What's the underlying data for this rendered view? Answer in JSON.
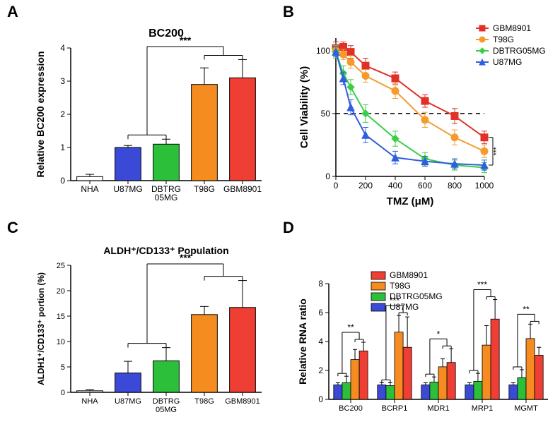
{
  "panelLabels": {
    "A": "A",
    "B": "B",
    "C": "C",
    "D": "D"
  },
  "panelLabelFontSize": 22,
  "A": {
    "type": "bar",
    "title": "BC200",
    "title_fontsize": 16,
    "ylabel": "Relative BC200 expression",
    "ylabel_fontsize": 14,
    "categories": [
      "NHA",
      "U87MG",
      "DBTRG\n05MG",
      "T98G",
      "GBM8901"
    ],
    "values": [
      0.12,
      1.0,
      1.1,
      2.9,
      3.1
    ],
    "errors": [
      0.07,
      0.06,
      0.15,
      0.5,
      0.55
    ],
    "bar_colors": [
      "#ffffff",
      "#3a49d6",
      "#2bbf3a",
      "#f58c20",
      "#ef3e33"
    ],
    "ylim": [
      0,
      4
    ],
    "ytick_step": 1,
    "axis_fontsize": 12,
    "bar_border": "#000000",
    "bar_border_width": 1,
    "sig_label": "***",
    "plot_bg": "#ffffff"
  },
  "B": {
    "type": "line",
    "title": "",
    "ylabel": "Cell Viability (%)",
    "xlabel": "TMZ (μM)",
    "label_fontsize": 15,
    "axis_fontsize": 12,
    "series": [
      {
        "name": "GBM8901",
        "color": "#e03127",
        "marker": "square",
        "x": [
          0,
          50,
          100,
          200,
          400,
          600,
          800,
          1000
        ],
        "y": [
          102,
          103,
          99,
          88,
          78,
          60,
          48,
          31
        ],
        "err": [
          5,
          4,
          5,
          6,
          5,
          5,
          6,
          5
        ]
      },
      {
        "name": "T98G",
        "color": "#f59b2e",
        "marker": "circle",
        "x": [
          0,
          50,
          100,
          200,
          400,
          600,
          800,
          1000
        ],
        "y": [
          100,
          97,
          91,
          80,
          68,
          45,
          31,
          20
        ],
        "err": [
          4,
          4,
          5,
          5,
          6,
          6,
          6,
          5
        ]
      },
      {
        "name": "DBTRG05MG",
        "color": "#3bcf46",
        "marker": "diamond",
        "x": [
          0,
          50,
          100,
          200,
          400,
          600,
          800,
          1000
        ],
        "y": [
          99,
          82,
          71,
          50,
          30,
          14,
          9,
          7
        ],
        "err": [
          5,
          6,
          6,
          7,
          6,
          5,
          4,
          4
        ]
      },
      {
        "name": "U87MG",
        "color": "#2f5fe0",
        "marker": "triangle",
        "x": [
          0,
          50,
          100,
          200,
          400,
          600,
          800,
          1000
        ],
        "y": [
          99,
          78,
          55,
          33,
          15,
          12,
          10,
          9
        ],
        "err": [
          4,
          5,
          6,
          6,
          5,
          4,
          4,
          4
        ]
      }
    ],
    "xlim": [
      0,
      1000
    ],
    "xticks": [
      0,
      200,
      400,
      600,
      800,
      1000
    ],
    "ylim": [
      0,
      110
    ],
    "yticks": [
      0,
      50,
      100
    ],
    "href": 50,
    "marker_size": 5,
    "line_width": 2,
    "sig_brace_label": "***"
  },
  "C": {
    "type": "bar",
    "title": "ALDH⁺/CD133⁺ Population",
    "title_fontsize": 14,
    "ylabel": "ALDH1⁺/CD133⁺ portion (%)",
    "ylabel_fontsize": 12,
    "categories": [
      "NHA",
      "U87MG",
      "DBTRG\n05MG",
      "T98G",
      "GBM8901"
    ],
    "values": [
      0.3,
      3.8,
      6.2,
      15.3,
      16.7
    ],
    "errors": [
      0.2,
      2.3,
      2.6,
      1.6,
      5.3
    ],
    "bar_colors": [
      "#ffffff",
      "#3a49d6",
      "#2bbf3a",
      "#f58c20",
      "#ef3e33"
    ],
    "ylim": [
      0,
      25
    ],
    "ytick_step": 5,
    "axis_fontsize": 11,
    "bar_border": "#000000",
    "bar_border_width": 1,
    "sig_label": "***"
  },
  "D": {
    "type": "grouped_bar",
    "title": "",
    "ylabel": "Relative RNA ratio",
    "ylabel_fontsize": 14,
    "axis_fontsize": 12,
    "categories": [
      "BC200",
      "BCRP1",
      "MDR1",
      "MRP1",
      "MGMT"
    ],
    "series": [
      {
        "name": "GBM8901",
        "color": "#ef3e33",
        "values": [
          3.35,
          3.6,
          2.55,
          5.55,
          3.05
        ],
        "errors": [
          0.6,
          2.1,
          0.95,
          1.35,
          0.55
        ]
      },
      {
        "name": "T98G",
        "color": "#f58c20",
        "values": [
          2.75,
          4.65,
          2.25,
          3.75,
          4.2
        ],
        "errors": [
          0.7,
          1.15,
          0.55,
          1.35,
          1.0
        ]
      },
      {
        "name": "DBTRG05MG",
        "color": "#2bbf3a",
        "values": [
          1.15,
          0.95,
          1.2,
          1.25,
          1.5
        ],
        "errors": [
          0.45,
          0.2,
          0.35,
          0.55,
          0.55
        ]
      },
      {
        "name": "U87MG",
        "color": "#3a49d6",
        "values": [
          1.0,
          1.0,
          1.0,
          1.0,
          1.0
        ],
        "errors": [
          0.15,
          0.15,
          0.15,
          0.15,
          0.15
        ]
      }
    ],
    "ylim": [
      0,
      8
    ],
    "ytick_step": 2,
    "bar_border": "#000000",
    "bar_border_width": 0.8,
    "sig_labels": [
      "**",
      "***",
      "*",
      "***",
      "**"
    ]
  },
  "colors": {
    "axis": "#000000",
    "tick": "#000000",
    "text": "#000000"
  }
}
